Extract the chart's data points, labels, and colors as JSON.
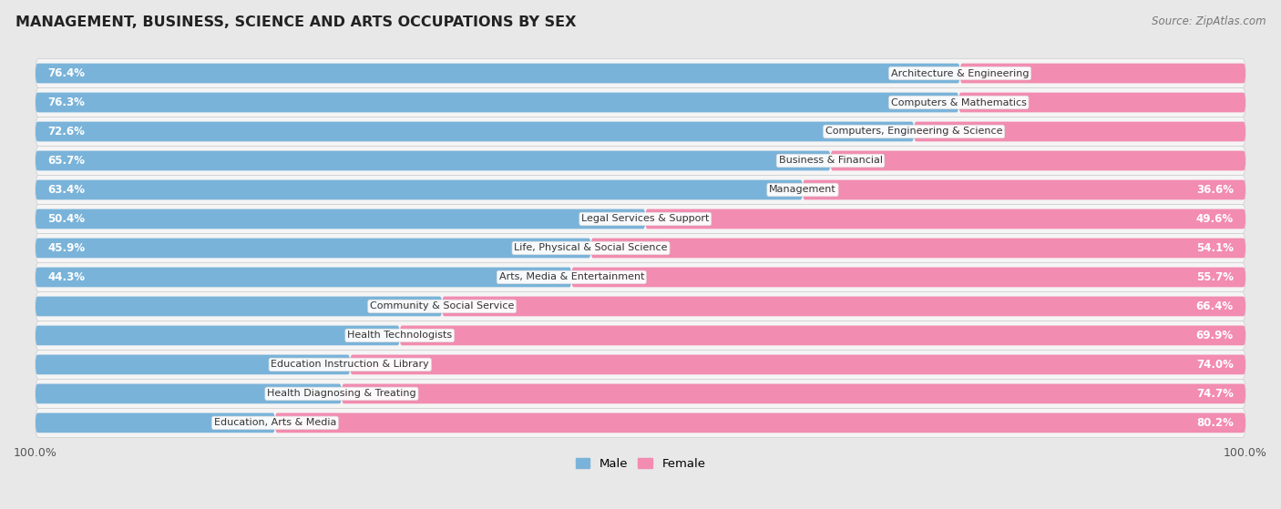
{
  "title": "MANAGEMENT, BUSINESS, SCIENCE AND ARTS OCCUPATIONS BY SEX",
  "source": "Source: ZipAtlas.com",
  "categories": [
    "Architecture & Engineering",
    "Computers & Mathematics",
    "Computers, Engineering & Science",
    "Business & Financial",
    "Management",
    "Legal Services & Support",
    "Life, Physical & Social Science",
    "Arts, Media & Entertainment",
    "Community & Social Service",
    "Health Technologists",
    "Education Instruction & Library",
    "Health Diagnosing & Treating",
    "Education, Arts & Media"
  ],
  "male_pct": [
    76.4,
    76.3,
    72.6,
    65.7,
    63.4,
    50.4,
    45.9,
    44.3,
    33.6,
    30.1,
    26.0,
    25.3,
    19.8
  ],
  "female_pct": [
    23.6,
    23.7,
    27.4,
    34.3,
    36.6,
    49.6,
    54.1,
    55.7,
    66.4,
    69.9,
    74.0,
    74.7,
    80.2
  ],
  "male_color": "#7ab3d9",
  "female_color": "#f28cb0",
  "bg_color": "#e8e8e8",
  "row_bg_color": "#f5f5f5",
  "bar_height": 0.68,
  "legend_male": "Male",
  "legend_female": "Female",
  "label_inside_threshold_male": 35,
  "label_inside_threshold_female": 35
}
